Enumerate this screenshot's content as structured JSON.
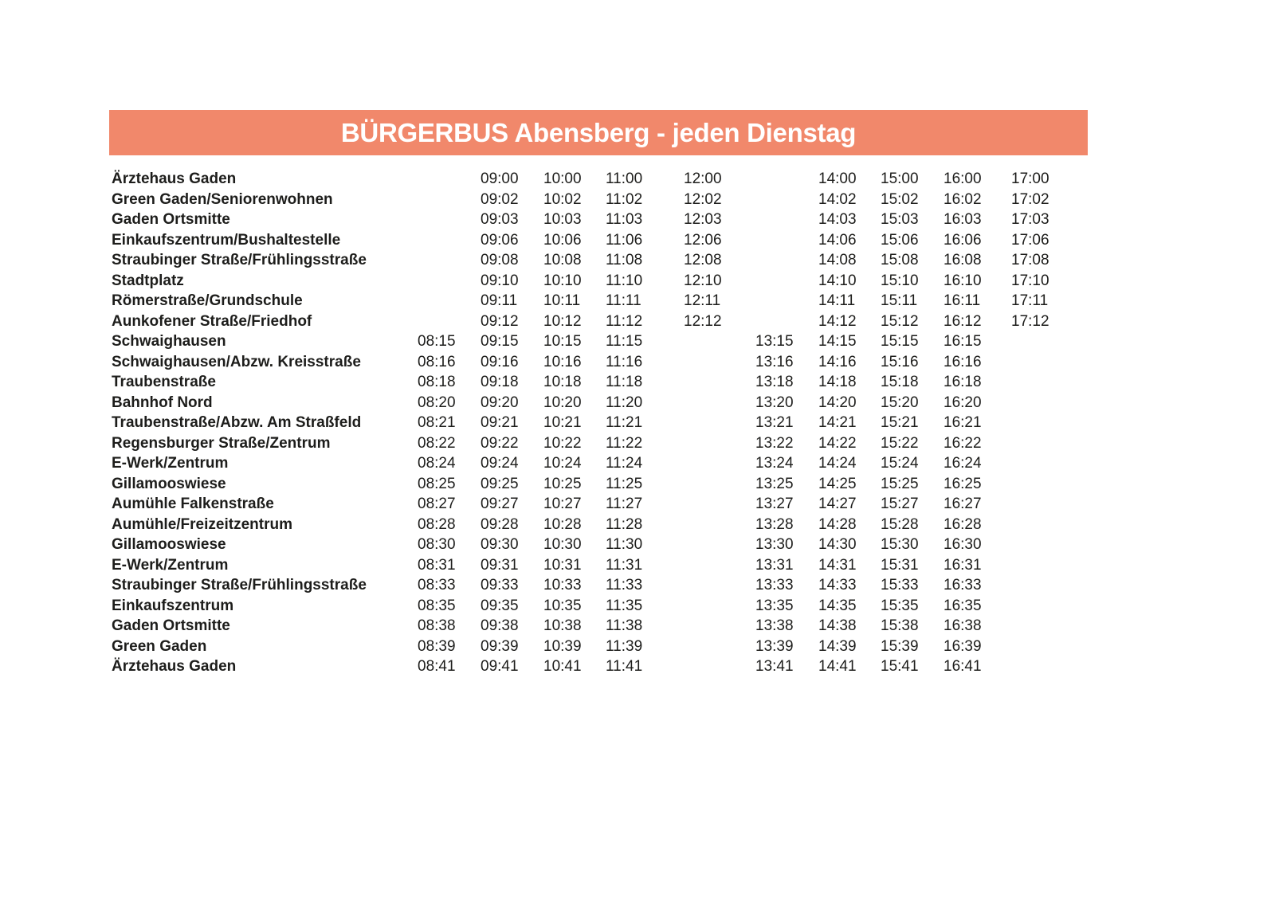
{
  "header": {
    "title": "BÜRGERBUS Abensberg - jeden Dienstag",
    "background_color": "#f1886b",
    "text_color": "#ffffff"
  },
  "timetable": {
    "text_color": "#1d1d1b",
    "rows": [
      {
        "stop": "Ärztehaus Gaden",
        "times": [
          "",
          "09:00",
          "10:00",
          "11:00",
          "12:00",
          "",
          "14:00",
          "15:00",
          "16:00",
          "17:00"
        ]
      },
      {
        "stop": "Green Gaden/Seniorenwohnen",
        "times": [
          "",
          "09:02",
          "10:02",
          "11:02",
          "12:02",
          "",
          "14:02",
          "15:02",
          "16:02",
          "17:02"
        ]
      },
      {
        "stop": "Gaden Ortsmitte",
        "times": [
          "",
          "09:03",
          "10:03",
          "11:03",
          "12:03",
          "",
          "14:03",
          "15:03",
          "16:03",
          "17:03"
        ]
      },
      {
        "stop": "Einkaufszentrum/Bushaltestelle",
        "times": [
          "",
          "09:06",
          "10:06",
          "11:06",
          "12:06",
          "",
          "14:06",
          "15:06",
          "16:06",
          "17:06"
        ]
      },
      {
        "stop": "Straubinger Straße/Frühlingsstraße",
        "times": [
          "",
          "09:08",
          "10:08",
          "11:08",
          "12:08",
          "",
          "14:08",
          "15:08",
          "16:08",
          "17:08"
        ]
      },
      {
        "stop": "Stadtplatz",
        "times": [
          "",
          "09:10",
          "10:10",
          "11:10",
          "12:10",
          "",
          "14:10",
          "15:10",
          "16:10",
          "17:10"
        ]
      },
      {
        "stop": "Römerstraße/Grundschule",
        "times": [
          "",
          "09:11",
          "10:11",
          "11:11",
          "12:11",
          "",
          "14:11",
          "15:11",
          "16:11",
          "17:11"
        ]
      },
      {
        "stop": "Aunkofener Straße/Friedhof",
        "times": [
          "",
          "09:12",
          "10:12",
          "11:12",
          "12:12",
          "",
          "14:12",
          "15:12",
          "16:12",
          "17:12"
        ]
      },
      {
        "stop": "Schwaighausen",
        "times": [
          "08:15",
          "09:15",
          "10:15",
          "11:15",
          "",
          "13:15",
          "14:15",
          "15:15",
          "16:15",
          ""
        ]
      },
      {
        "stop": "Schwaighausen/Abzw. Kreisstraße",
        "times": [
          "08:16",
          "09:16",
          "10:16",
          "11:16",
          "",
          "13:16",
          "14:16",
          "15:16",
          "16:16",
          ""
        ]
      },
      {
        "stop": "Traubenstraße",
        "times": [
          "08:18",
          "09:18",
          "10:18",
          "11:18",
          "",
          "13:18",
          "14:18",
          "15:18",
          "16:18",
          ""
        ]
      },
      {
        "stop": "Bahnhof Nord",
        "times": [
          "08:20",
          "09:20",
          "10:20",
          "11:20",
          "",
          "13:20",
          "14:20",
          "15:20",
          "16:20",
          ""
        ]
      },
      {
        "stop": "Traubenstraße/Abzw. Am Straßfeld",
        "times": [
          "08:21",
          "09:21",
          "10:21",
          "11:21",
          "",
          "13:21",
          "14:21",
          "15:21",
          "16:21",
          ""
        ]
      },
      {
        "stop": "Regensburger Straße/Zentrum",
        "times": [
          "08:22",
          "09:22",
          "10:22",
          "11:22",
          "",
          "13:22",
          "14:22",
          "15:22",
          "16:22",
          ""
        ]
      },
      {
        "stop": "E-Werk/Zentrum",
        "times": [
          "08:24",
          "09:24",
          "10:24",
          "11:24",
          "",
          "13:24",
          "14:24",
          "15:24",
          "16:24",
          ""
        ]
      },
      {
        "stop": "Gillamooswiese",
        "times": [
          "08:25",
          "09:25",
          "10:25",
          "11:25",
          "",
          "13:25",
          "14:25",
          "15:25",
          "16:25",
          ""
        ]
      },
      {
        "stop": "Aumühle Falkenstraße",
        "times": [
          "08:27",
          "09:27",
          "10:27",
          "11:27",
          "",
          "13:27",
          "14:27",
          "15:27",
          "16:27",
          ""
        ]
      },
      {
        "stop": "Aumühle/Freizeitzentrum",
        "times": [
          "08:28",
          "09:28",
          "10:28",
          "11:28",
          "",
          "13:28",
          "14:28",
          "15:28",
          "16:28",
          ""
        ]
      },
      {
        "stop": "Gillamooswiese",
        "times": [
          "08:30",
          "09:30",
          "10:30",
          "11:30",
          "",
          "13:30",
          "14:30",
          "15:30",
          "16:30",
          ""
        ]
      },
      {
        "stop": "E-Werk/Zentrum",
        "times": [
          "08:31",
          "09:31",
          "10:31",
          "11:31",
          "",
          "13:31",
          "14:31",
          "15:31",
          "16:31",
          ""
        ]
      },
      {
        "stop": "Straubinger Straße/Frühlingsstraße",
        "times": [
          "08:33",
          "09:33",
          "10:33",
          "11:33",
          "",
          "13:33",
          "14:33",
          "15:33",
          "16:33",
          ""
        ]
      },
      {
        "stop": "Einkaufszentrum",
        "times": [
          "08:35",
          "09:35",
          "10:35",
          "11:35",
          "",
          "13:35",
          "14:35",
          "15:35",
          "16:35",
          ""
        ]
      },
      {
        "stop": "Gaden Ortsmitte",
        "times": [
          "08:38",
          "09:38",
          "10:38",
          "11:38",
          "",
          "13:38",
          "14:38",
          "15:38",
          "16:38",
          ""
        ]
      },
      {
        "stop": "Green Gaden",
        "times": [
          "08:39",
          "09:39",
          "10:39",
          "11:39",
          "",
          "13:39",
          "14:39",
          "15:39",
          "16:39",
          ""
        ]
      },
      {
        "stop": "Ärztehaus Gaden",
        "times": [
          "08:41",
          "09:41",
          "10:41",
          "11:41",
          "",
          "13:41",
          "14:41",
          "15:41",
          "16:41",
          ""
        ]
      }
    ]
  }
}
